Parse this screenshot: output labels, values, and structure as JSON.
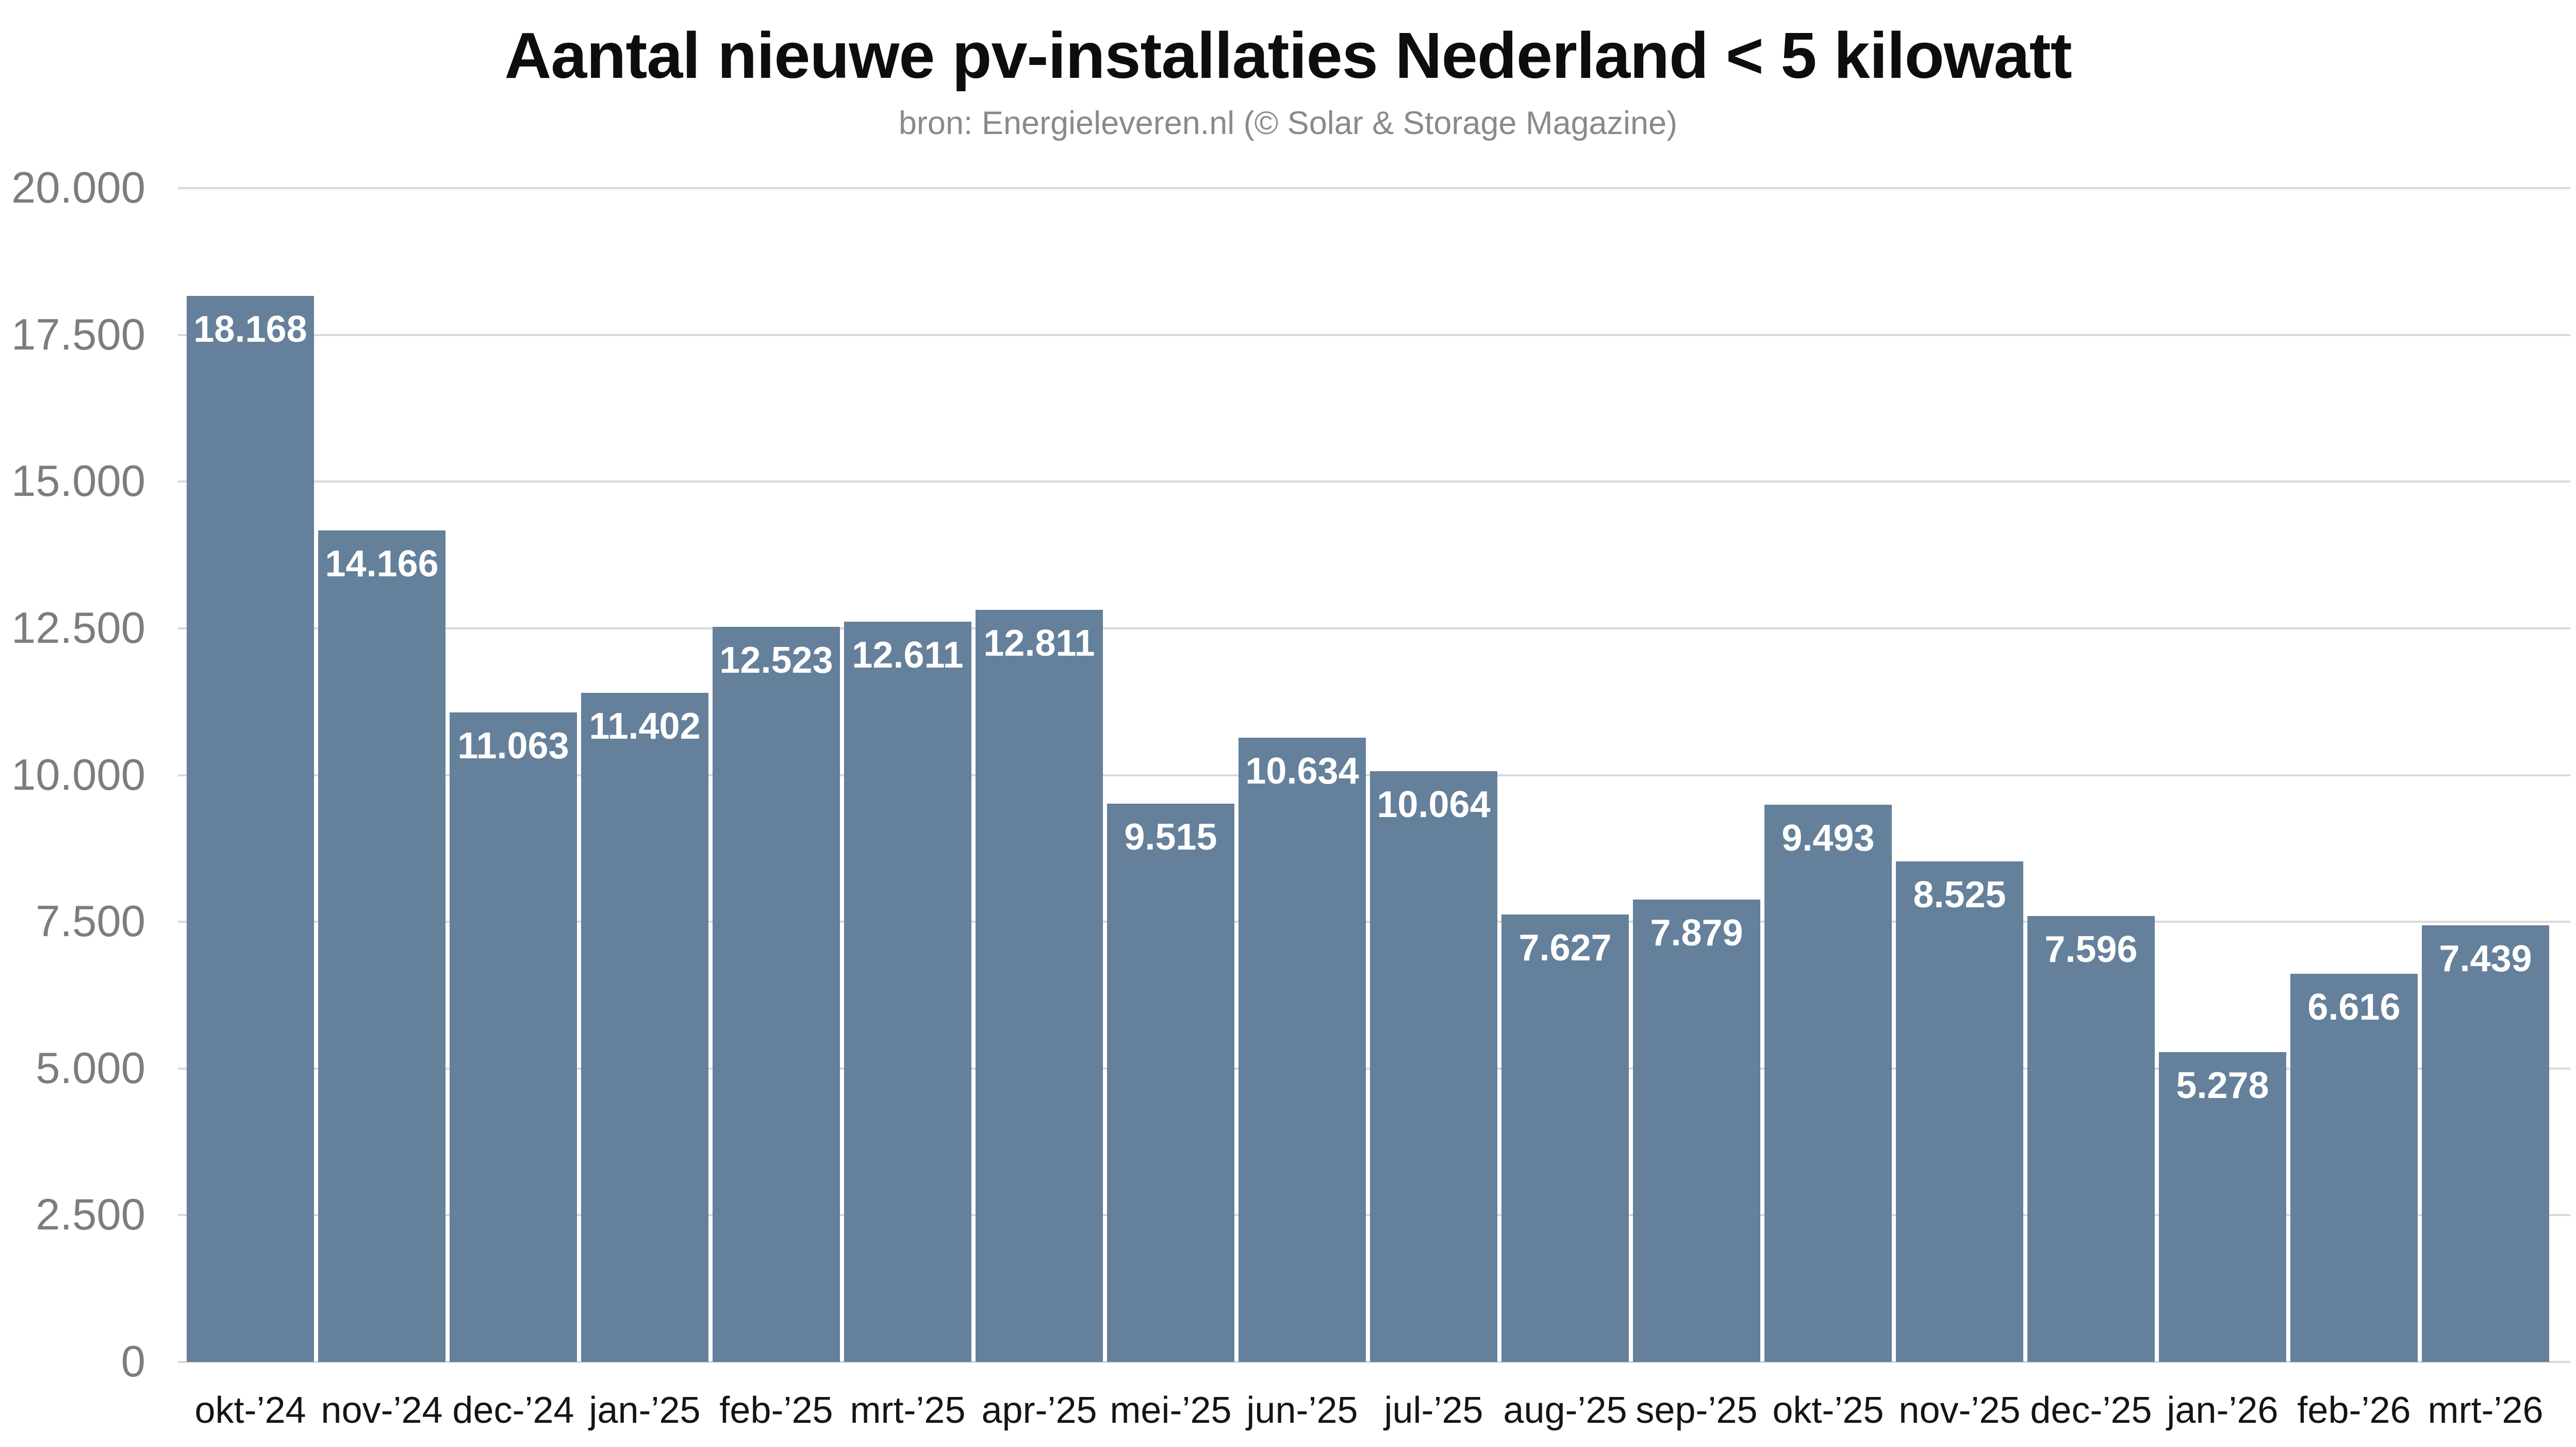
{
  "header": {
    "title": "Aantal nieuwe pv-installaties Nederland < 5 kilowatt",
    "subtitle": "bron: Energieleveren.nl (© Solar & Storage Magazine)"
  },
  "chart_data": {
    "type": "bar",
    "title": "Aantal nieuwe pv-installaties Nederland < 5 kilowatt",
    "source": "bron: Energieleveren.nl (© Solar & Storage Magazine)",
    "categories": [
      "okt-’24",
      "nov-’24",
      "dec-’24",
      "jan-’25",
      "feb-’25",
      "mrt-’25",
      "apr-’25",
      "mei-’25",
      "jun-’25",
      "jul-’25",
      "aug-’25",
      "sep-’25",
      "okt-’25",
      "nov-’25",
      "dec-’25",
      "jan-’26",
      "feb-’26",
      "mrt-’26"
    ],
    "values": [
      18168,
      14166,
      11063,
      11402,
      12523,
      12611,
      12811,
      9515,
      10634,
      10064,
      7627,
      7879,
      9493,
      8525,
      7596,
      5278,
      6616,
      7439
    ],
    "value_labels": [
      "18.168",
      "14.166",
      "11.063",
      "11.402",
      "12.523",
      "12.611",
      "12.811",
      "9.515",
      "10.634",
      "10.064",
      "7.627",
      "7.879",
      "9.493",
      "8.525",
      "7.596",
      "5.278",
      "6.616",
      "7.439"
    ],
    "xlabel": "",
    "ylabel": "",
    "ylim": [
      0,
      20000
    ],
    "ytick_interval": 2500,
    "ytick_labels": [
      "0",
      "2.500",
      "5.000",
      "7.500",
      "10.000",
      "12.500",
      "15.000",
      "17.500",
      "20.000"
    ],
    "grid": true,
    "legend": "none",
    "colors": {
      "bar": "#64809B",
      "bar_value_text": "#ffffff",
      "gridline": "#d9d9d9",
      "ytick_text": "#7d7d7d",
      "xtick_text": "#141414",
      "title_text": "#0d0d0d",
      "subtitle_text": "#8a8a8a",
      "background": "#ffffff"
    }
  }
}
